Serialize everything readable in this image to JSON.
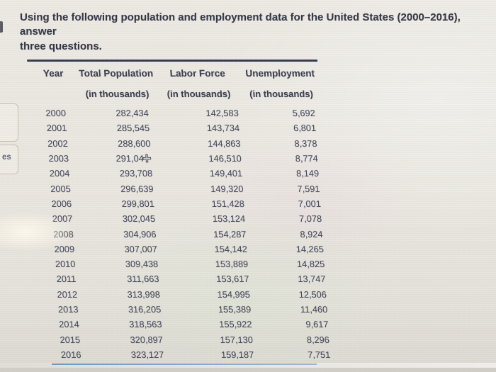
{
  "question": {
    "line1": "Using the following population and employment data for the United States (2000–2016), answer",
    "line2": "three questions."
  },
  "left_edge": {
    "partial_label": "es"
  },
  "table": {
    "columns": [
      {
        "label": "Year",
        "sublabel": ""
      },
      {
        "label": "Total Population",
        "sublabel": "(in thousands)"
      },
      {
        "label": "Labor Force",
        "sublabel": "(in thousands)"
      },
      {
        "label": "Unemployment",
        "sublabel": "(in thousands)"
      }
    ],
    "rows": [
      [
        "2000",
        "282,434",
        "142,583",
        "5,692"
      ],
      [
        "2001",
        "285,545",
        "143,734",
        "6,801"
      ],
      [
        "2002",
        "288,600",
        "144,863",
        "8,378"
      ],
      [
        "2003",
        "291,04",
        "146,510",
        "8,774"
      ],
      [
        "2004",
        "293,708",
        "149,401",
        "8,149"
      ],
      [
        "2005",
        "296,639",
        "149,320",
        "7,591"
      ],
      [
        "2006",
        "299,801",
        "151,428",
        "7,001"
      ],
      [
        "2007",
        "302,045",
        "153,124",
        "7,078"
      ],
      [
        "2008",
        "304,906",
        "154,287",
        "8,924"
      ],
      [
        "2009",
        "307,007",
        "154,142",
        "14,265"
      ],
      [
        "2010",
        "309,438",
        "153,889",
        "14,825"
      ],
      [
        "2011",
        "311,663",
        "153,617",
        "13,747"
      ],
      [
        "2012",
        "313,998",
        "154,995",
        "12,506"
      ],
      [
        "2013",
        "316,205",
        "155,389",
        "11,460"
      ],
      [
        "2014",
        "318,563",
        "155,922",
        "9,617"
      ],
      [
        "2015",
        "320,897",
        "157,130",
        "8,296"
      ],
      [
        "2016",
        "323,127",
        "159,187",
        "7,751"
      ]
    ],
    "cursor": {
      "row_year": "2003",
      "column_index": 1,
      "icon": "plus-cursor"
    }
  },
  "colors": {
    "background": "#e9e6df",
    "question_text": "#2f3342",
    "table_text": "#42465a",
    "table_top_rule": "#343850",
    "table_bottom_rule": "#4d7fb0"
  }
}
